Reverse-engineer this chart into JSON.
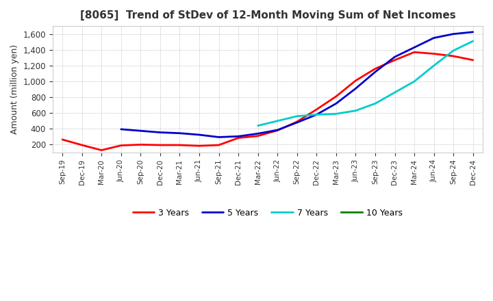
{
  "title": "[8065]  Trend of StDev of 12-Month Moving Sum of Net Incomes",
  "ylabel": "Amount (million yen)",
  "ylim": [
    100,
    1700
  ],
  "yticks": [
    200,
    400,
    600,
    800,
    1000,
    1200,
    1400,
    1600
  ],
  "background_color": "#f0f0f0",
  "line_colors": {
    "3yr": "#ff0000",
    "5yr": "#0000cc",
    "7yr": "#00cccc",
    "10yr": "#008000"
  },
  "legend_labels": [
    "3 Years",
    "5 Years",
    "7 Years",
    "10 Years"
  ],
  "x_labels": [
    "Sep-19",
    "Dec-19",
    "Mar-20",
    "Jun-20",
    "Sep-20",
    "Dec-20",
    "Mar-21",
    "Jun-21",
    "Sep-21",
    "Dec-21",
    "Mar-22",
    "Jun-22",
    "Sep-22",
    "Dec-22",
    "Mar-23",
    "Jun-23",
    "Sep-23",
    "Dec-23",
    "Mar-24",
    "Jun-24",
    "Sep-24",
    "Dec-24"
  ],
  "series_3yr": [
    265,
    195,
    130,
    190,
    200,
    195,
    195,
    185,
    195,
    285,
    310,
    380,
    490,
    645,
    810,
    1010,
    1160,
    1270,
    1370,
    1350,
    1320,
    1270
  ],
  "series_5yr": [
    null,
    null,
    null,
    395,
    375,
    355,
    345,
    325,
    295,
    305,
    340,
    385,
    480,
    580,
    720,
    910,
    1120,
    1310,
    1430,
    1550,
    1600,
    1625
  ],
  "series_7yr": [
    null,
    null,
    null,
    null,
    null,
    null,
    null,
    null,
    null,
    null,
    440,
    500,
    560,
    580,
    590,
    630,
    720,
    860,
    1000,
    1200,
    1390,
    1510
  ],
  "series_10yr": [
    null,
    null,
    null,
    null,
    null,
    null,
    null,
    null,
    null,
    null,
    null,
    null,
    null,
    null,
    null,
    null,
    null,
    null,
    null,
    null,
    null,
    null
  ]
}
